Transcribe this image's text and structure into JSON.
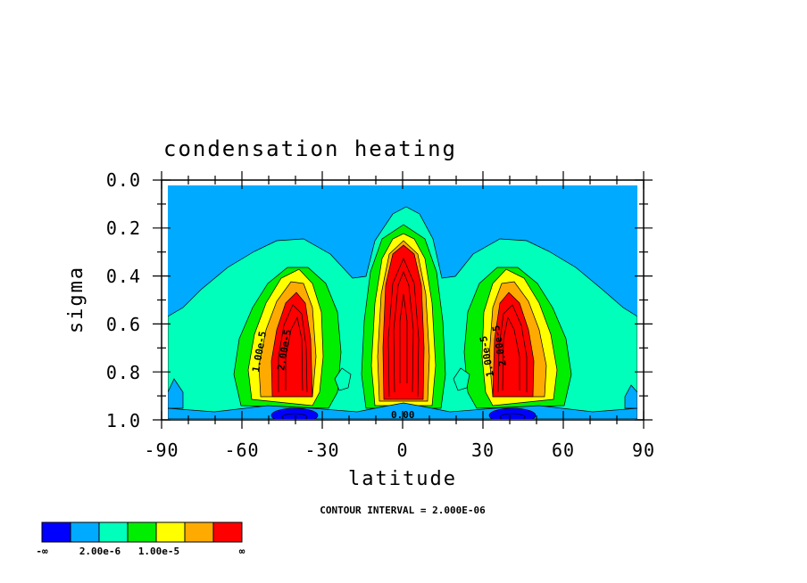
{
  "chart_data": {
    "type": "heatmap",
    "title": "condensation heating",
    "xlabel": "latitude",
    "ylabel": "sigma",
    "x_ticks": [
      "-90",
      "-60",
      "-30",
      "0",
      "30",
      "60",
      "90"
    ],
    "y_ticks": [
      "0.0",
      "0.2",
      "0.4",
      "0.6",
      "0.8",
      "1.0"
    ],
    "xlim": [
      -90,
      90
    ],
    "ylim": [
      0.0,
      1.0
    ],
    "y_inverted": true,
    "contour_interval_text": "CONTOUR INTERVAL = 2.000E-06",
    "contour_labels": [
      "1.00e-5",
      "2.00e-5",
      "1.00e-5",
      "2.00e-5",
      "0.00"
    ],
    "colorbar": {
      "colors": [
        "#0000ff",
        "#00aaff",
        "#00ffbb",
        "#00ee00",
        "#ffff00",
        "#ffaa00",
        "#ff0000"
      ],
      "labels": [
        "-∞",
        "2.00e-6",
        "1.00e-5",
        "∞"
      ],
      "bins": [
        "< 0",
        "0 – 2.00e-6",
        "2.00e-6 – 4.00e-6",
        "4.00e-6 – 1.00e-5",
        "1.00e-5 – 1.40e-5",
        "1.40e-5 – 2.00e-5",
        "> 2.00e-5"
      ]
    },
    "features": [
      {
        "name": "southern-storm-track-max",
        "lat": -40,
        "sigma": 0.65,
        "value_bin": "> 2.00e-5"
      },
      {
        "name": "itcz-max",
        "lat": 0,
        "sigma": 0.5,
        "value_bin": "> 2.00e-5"
      },
      {
        "name": "northern-storm-track-max",
        "lat": 40,
        "sigma": 0.65,
        "value_bin": "> 2.00e-5"
      },
      {
        "name": "southern-near-surface-min",
        "lat": -40,
        "sigma": 0.99,
        "value_bin": "< 0"
      },
      {
        "name": "northern-near-surface-min",
        "lat": 40,
        "sigma": 0.99,
        "value_bin": "< 0"
      }
    ]
  }
}
